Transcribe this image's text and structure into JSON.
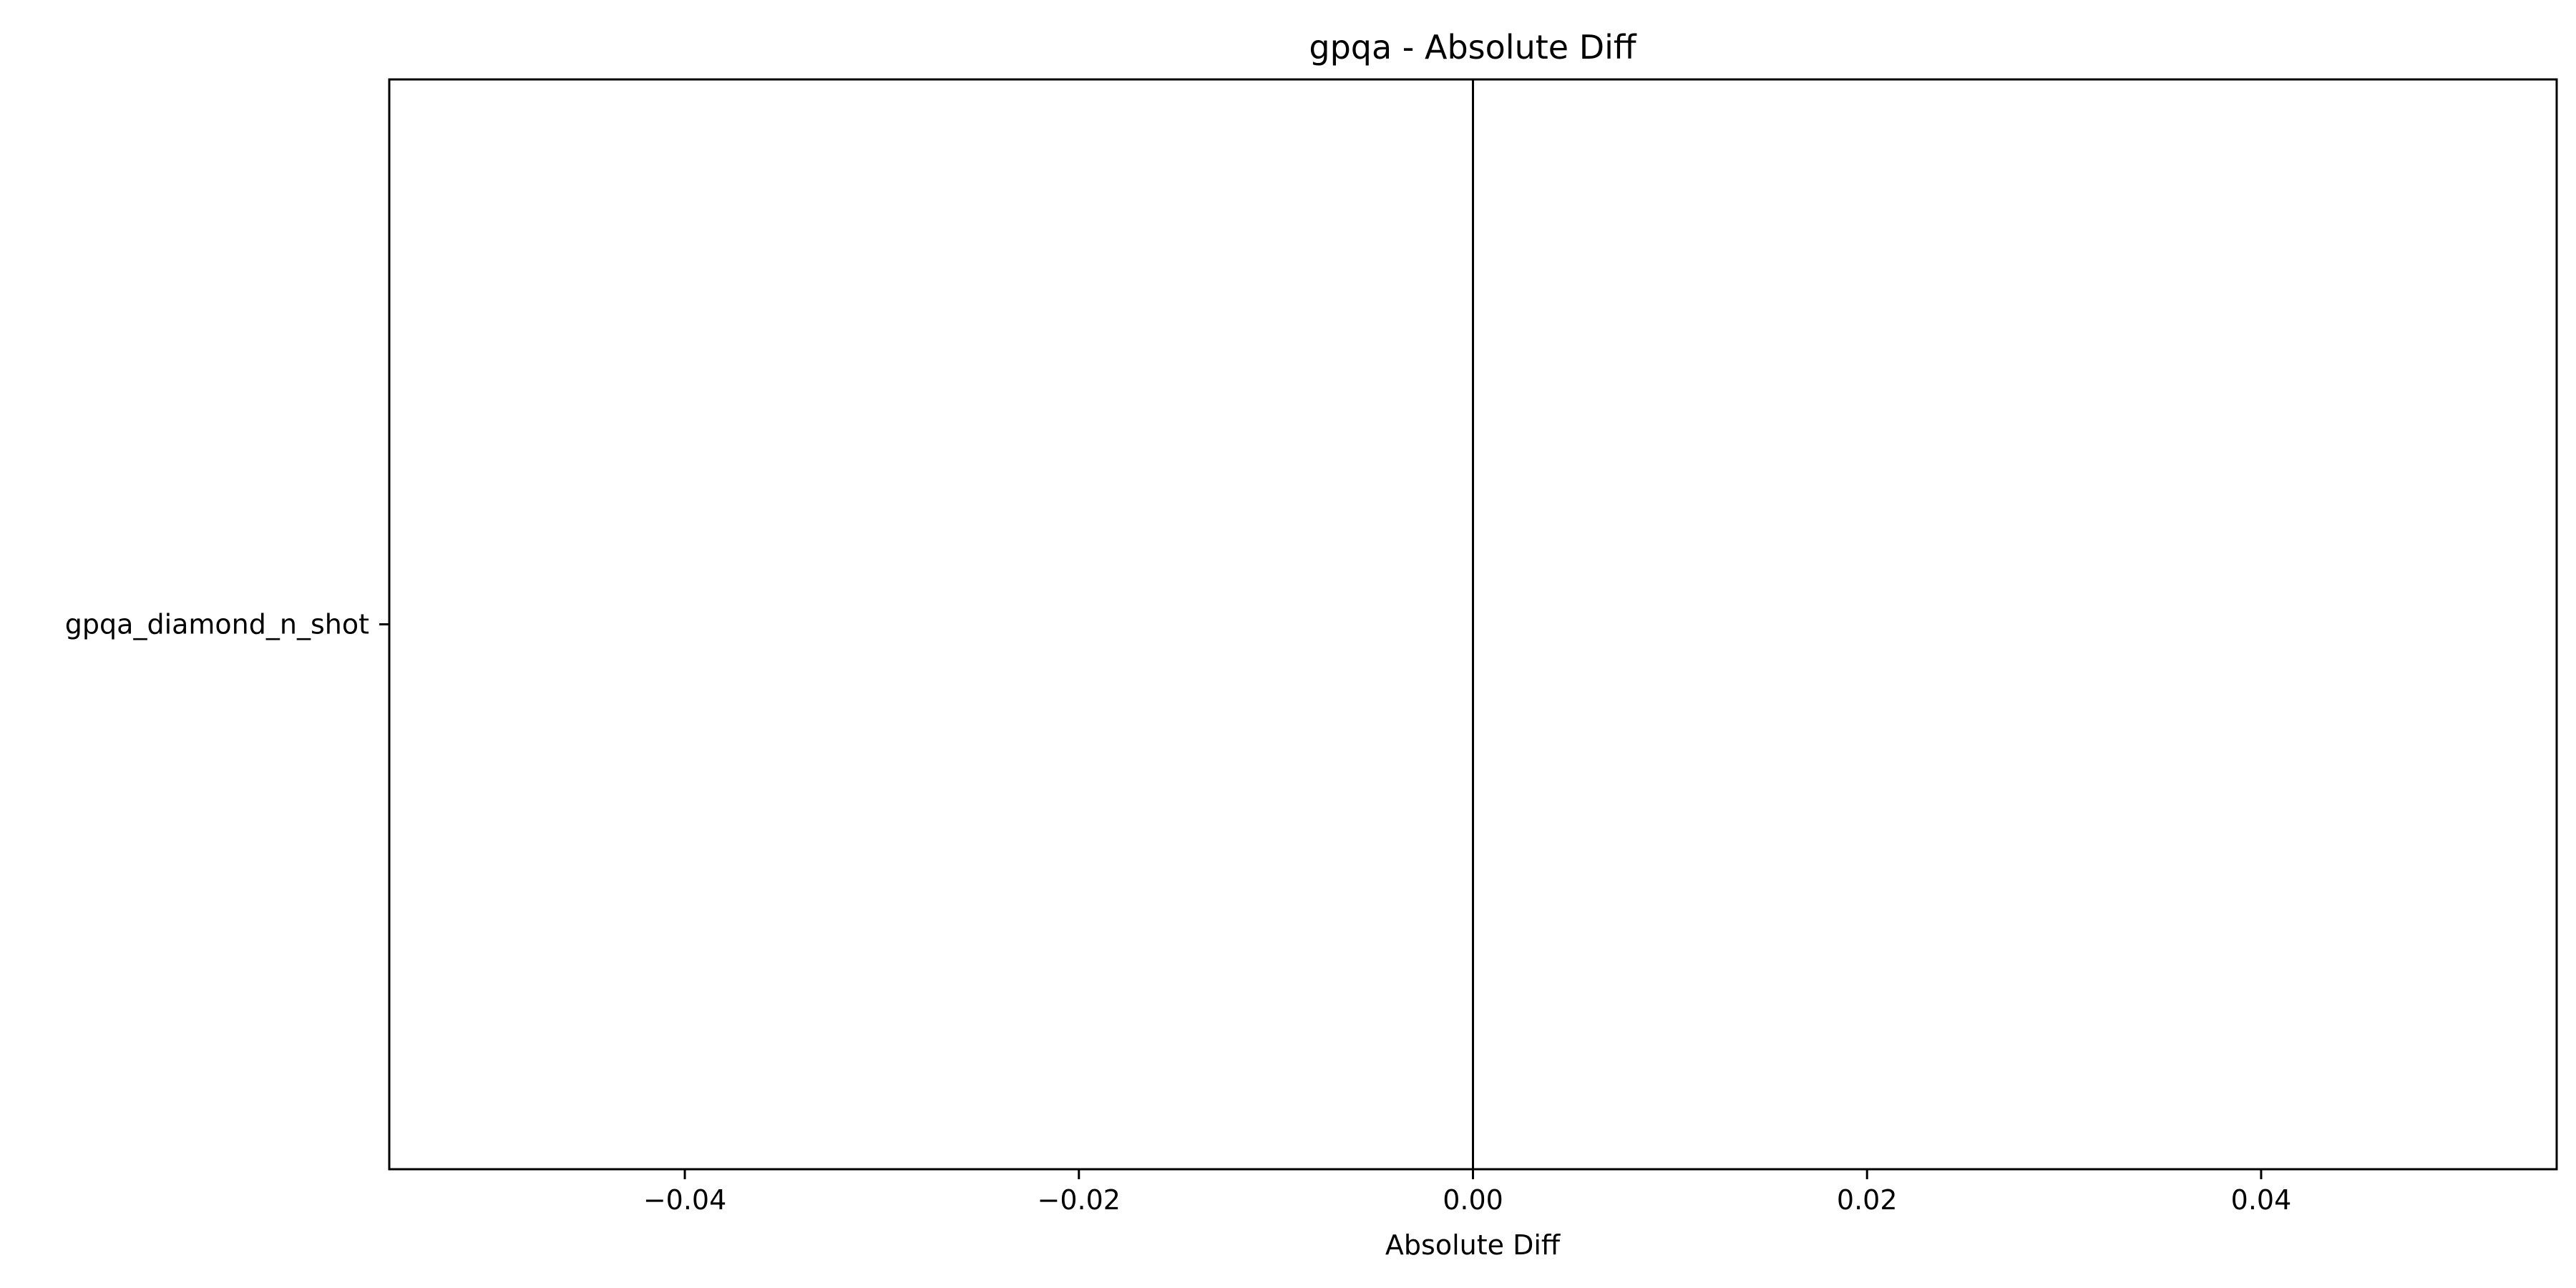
{
  "chart_data": {
    "type": "bar",
    "orientation": "horizontal",
    "title": "gpqa - Absolute Diff",
    "xlabel": "Absolute Diff",
    "ylabel": "",
    "categories": [
      "gpqa_diamond_n_shot"
    ],
    "values": [
      0.0
    ],
    "xlim": [
      -0.055,
      0.055
    ],
    "xticks": [
      -0.04,
      -0.02,
      0.0,
      0.02,
      0.04
    ],
    "xtick_labels": [
      "−0.04",
      "−0.02",
      "0.00",
      "0.02",
      "0.04"
    ],
    "reference_line_x": 0.0,
    "grid": false,
    "legend": "none",
    "colors": {
      "axes": "#000000",
      "background": "#ffffff",
      "bar": "#1f77b4"
    }
  }
}
